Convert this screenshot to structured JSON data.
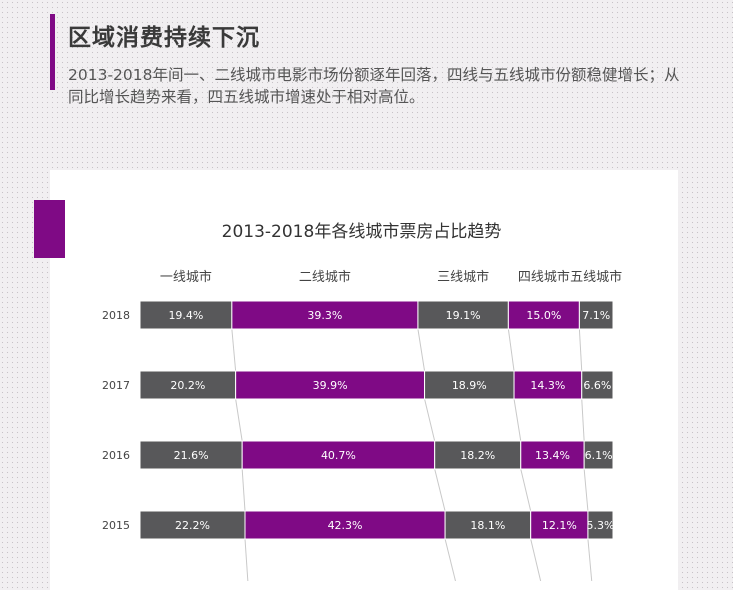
{
  "header": {
    "title": "区域消费持续下沉",
    "subtitle": "2013-2018年间一、二线城市电影市场份额逐年回落，四线与五线城市份额稳健增长；从同比增长趋势来看，四五线城市增速处于相对高位。"
  },
  "colors": {
    "dark": "#58585a",
    "purple": "#7f0a85",
    "accent": "#7f0a85"
  },
  "chart_data": {
    "type": "bar",
    "orientation": "horizontal",
    "stacked": true,
    "title": "2013-2018年各线城市票房占比趋势",
    "categories": [
      "2018",
      "2017",
      "2016",
      "2015"
    ],
    "series": [
      {
        "name": "一线城市",
        "color": "#58585a",
        "values": [
          19.4,
          20.2,
          21.6,
          22.2
        ],
        "labels": [
          "19.4%",
          "20.2%",
          "21.6%",
          "22.2%"
        ]
      },
      {
        "name": "二线城市",
        "color": "#7f0a85",
        "values": [
          39.3,
          39.9,
          40.7,
          42.3
        ],
        "labels": [
          "39.3%",
          "39.9%",
          "40.7%",
          "42.3%"
        ]
      },
      {
        "name": "三线城市",
        "color": "#58585a",
        "values": [
          19.1,
          18.9,
          18.2,
          18.1
        ],
        "labels": [
          "19.1%",
          "18.9%",
          "18.2%",
          "18.1%"
        ]
      },
      {
        "name": "四线城市",
        "color": "#7f0a85",
        "values": [
          15.0,
          14.3,
          13.4,
          12.1
        ],
        "labels": [
          "15.0%",
          "14.3%",
          "13.4%",
          "12.1%"
        ]
      },
      {
        "name": "五线城市",
        "color": "#58585a",
        "values": [
          7.1,
          6.6,
          6.1,
          5.3
        ],
        "labels": [
          "7.1%",
          "6.6%",
          "6.1%",
          "5.3%"
        ]
      }
    ],
    "xlim": [
      0,
      100
    ],
    "grid": false,
    "legend": "top"
  }
}
